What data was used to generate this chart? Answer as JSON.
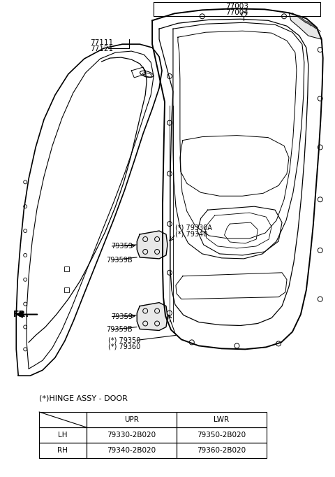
{
  "bg_color": "#ffffff",
  "line_color": "#000000",
  "label_color": "#000000",
  "table_title": "(*)HINGE ASSY - DOOR",
  "table_headers": [
    "",
    "UPR",
    "LWR"
  ],
  "table_rows": [
    [
      "LH",
      "79330-2B020",
      "79350-2B020"
    ],
    [
      "RH",
      "79340-2B020",
      "79360-2B020"
    ]
  ],
  "label_77003": "77003",
  "label_77004": "77004",
  "label_77111": "77111",
  "label_77121": "77121",
  "label_79330A": "(*) 79330A",
  "label_79340": "(*) 79340",
  "label_79359_u": "79359",
  "label_79359B_u": "79359B",
  "label_79359_l": "79359",
  "label_79359B_l": "79359B",
  "label_79350": "(*) 79350",
  "label_79360": "(*) 79360",
  "label_FR": "FR."
}
